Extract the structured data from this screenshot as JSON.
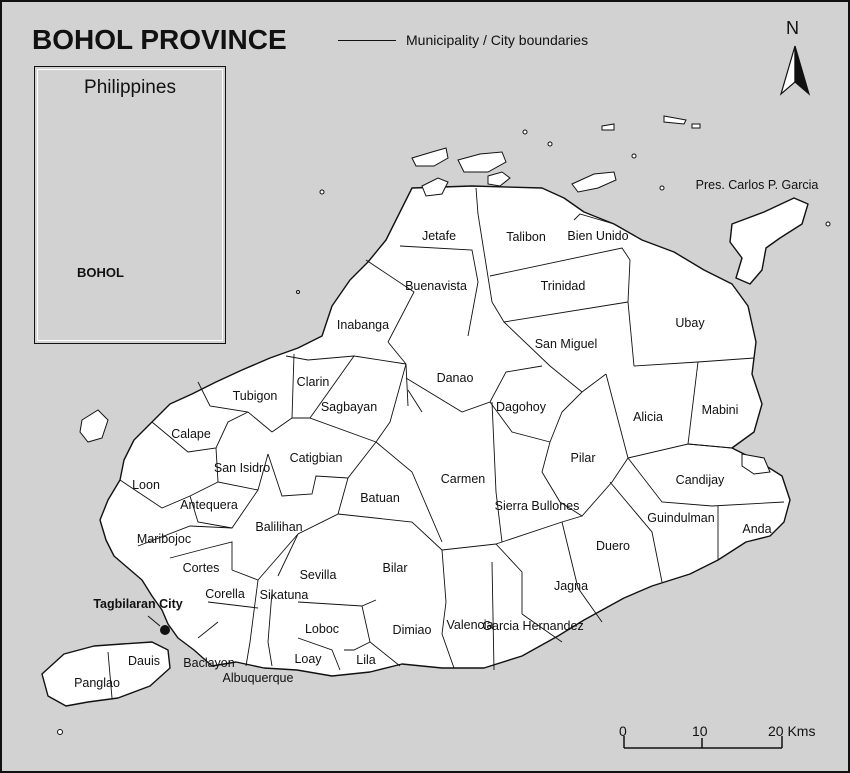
{
  "title": "BOHOL PROVINCE",
  "legend": {
    "label": "Municipality / City boundaries"
  },
  "inset": {
    "title": "Philippines",
    "highlight_label": "BOHOL"
  },
  "north_arrow": {
    "label": "N"
  },
  "scale_bar": {
    "ticks": [
      "0",
      "10",
      "20 Kms"
    ]
  },
  "municipalities": [
    "Jetafe",
    "Talibon",
    "Bien Unido",
    "Trinidad",
    "Buenavista",
    "Inabanga",
    "San Miguel",
    "Ubay",
    "Pres. Carlos P. Garcia",
    "Danao",
    "Clarin",
    "Tubigon",
    "Sagbayan",
    "Dagohoy",
    "Alicia",
    "Mabini",
    "Calape",
    "San Isidro",
    "Catigbian",
    "Carmen",
    "Pilar",
    "Candijay",
    "Loon",
    "Antequera",
    "Batuan",
    "Sierra Bullones",
    "Guindulman",
    "Anda",
    "Maribojoc",
    "Balilihan",
    "Duero",
    "Cortes",
    "Sevilla",
    "Bilar",
    "Jagna",
    "Corella",
    "Sikatuna",
    "Tagbilaran City",
    "Loboc",
    "Dimiao",
    "Valencia",
    "Garcia Hernandez",
    "Dauis",
    "Baclayon",
    "Loay",
    "Lila",
    "Panglao",
    "Albuquerque"
  ],
  "colors": {
    "sea": "#d2d2d2",
    "land": "#ffffff",
    "line": "#111111"
  }
}
